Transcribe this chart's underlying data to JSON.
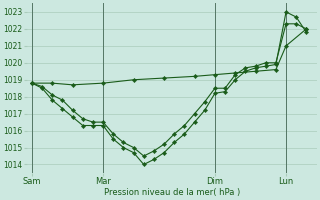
{
  "title": "",
  "xlabel": "Pression niveau de la mer( hPa )",
  "ylabel": "",
  "bg_color": "#cce8e0",
  "grid_color": "#aaccbb",
  "line_color": "#1a5c1a",
  "ylim": [
    1013.5,
    1023.5
  ],
  "yticks": [
    1014,
    1015,
    1016,
    1017,
    1018,
    1019,
    1020,
    1021,
    1022,
    1023
  ],
  "xtick_labels": [
    "Sam",
    "Mar",
    "Dim",
    "Lun"
  ],
  "xtick_positions": [
    0,
    14,
    36,
    50
  ],
  "vline_positions": [
    0,
    14,
    36,
    50
  ],
  "series1_x": [
    0,
    2,
    4,
    6,
    8,
    10,
    12,
    14,
    16,
    18,
    20,
    22,
    24,
    26,
    28,
    30,
    32,
    34,
    36,
    38,
    40,
    42,
    44,
    46,
    48,
    50,
    52,
    54
  ],
  "series1_y": [
    1018.8,
    1018.6,
    1018.1,
    1017.8,
    1017.2,
    1016.7,
    1016.5,
    1016.5,
    1015.8,
    1015.3,
    1015.0,
    1014.5,
    1014.8,
    1015.2,
    1015.8,
    1016.3,
    1017.0,
    1017.7,
    1018.5,
    1018.5,
    1019.3,
    1019.7,
    1019.8,
    1020.0,
    1020.0,
    1022.3,
    1022.3,
    1022.0
  ],
  "series2_x": [
    0,
    2,
    4,
    6,
    8,
    10,
    12,
    14,
    16,
    18,
    20,
    22,
    24,
    26,
    28,
    30,
    32,
    34,
    36,
    38,
    40,
    42,
    44,
    46,
    48,
    50,
    52,
    54
  ],
  "series2_y": [
    1018.8,
    1018.5,
    1017.8,
    1017.3,
    1016.8,
    1016.3,
    1016.3,
    1016.3,
    1015.5,
    1015.0,
    1014.7,
    1014.0,
    1014.3,
    1014.7,
    1015.3,
    1015.8,
    1016.5,
    1017.2,
    1018.2,
    1018.3,
    1019.0,
    1019.5,
    1019.7,
    1019.8,
    1019.9,
    1023.0,
    1022.7,
    1021.8
  ],
  "series3_x": [
    0,
    4,
    8,
    14,
    20,
    26,
    32,
    36,
    40,
    44,
    48,
    50,
    54
  ],
  "series3_y": [
    1018.8,
    1018.8,
    1018.7,
    1018.8,
    1019.0,
    1019.1,
    1019.2,
    1019.3,
    1019.4,
    1019.5,
    1019.6,
    1021.0,
    1022.0
  ]
}
